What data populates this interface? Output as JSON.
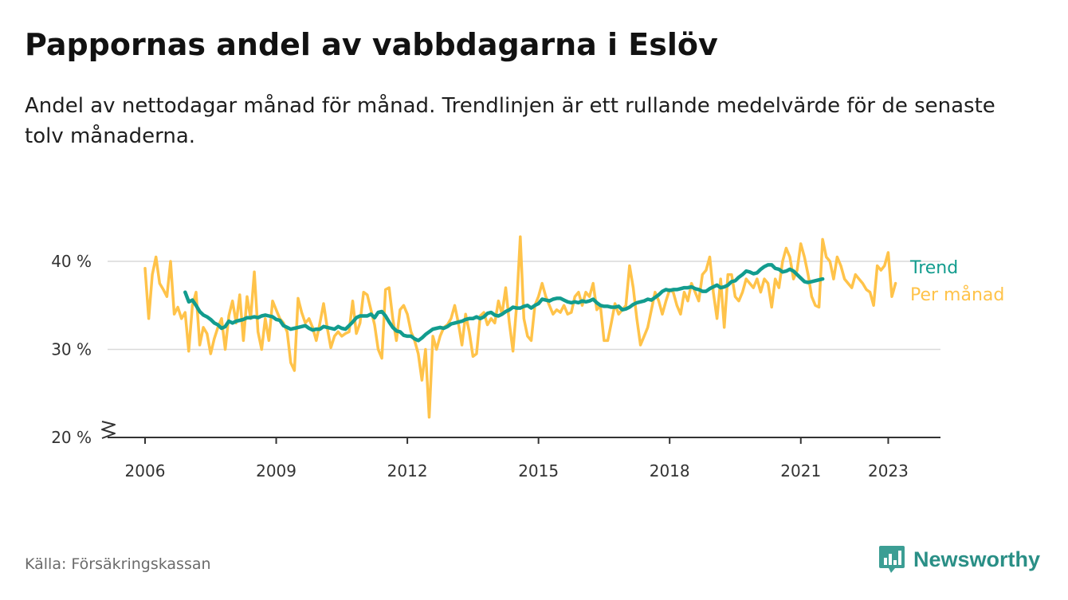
{
  "header": {
    "title": "Pappornas andel av vabbdagarna i Eslöv",
    "subtitle": "Andel av nettodagar månad för månad. Trendlinjen är ett rullande medelvärde för de senaste tolv månaderna."
  },
  "footer": {
    "source": "Källa: Försäkringskassan",
    "brand": "Newsworthy",
    "brand_icon": "bar-chart-speech-bubble-icon"
  },
  "colors": {
    "monthly": "#FFC34A",
    "trend": "#129C8E",
    "grid": "#d9d9d9",
    "axis": "#333333",
    "brand": "#2a8f86"
  },
  "chart_data": {
    "type": "line",
    "title": "Pappornas andel av vabbdagarna i Eslöv",
    "subtitle": "Andel av nettodagar månad för månad. Trendlinjen är ett rullande medelvärde för de senaste tolv månaderna.",
    "xlabel": "",
    "ylabel": "",
    "x_ticks": [
      {
        "value": 2006,
        "label": "2006"
      },
      {
        "value": 2009,
        "label": "2009"
      },
      {
        "value": 2012,
        "label": "2012"
      },
      {
        "value": 2015,
        "label": "2015"
      },
      {
        "value": 2018,
        "label": "2018"
      },
      {
        "value": 2021,
        "label": "2021"
      },
      {
        "value": 2023,
        "label": "2023"
      }
    ],
    "y_ticks": [
      {
        "value": 20,
        "label": "20 %"
      },
      {
        "value": 30,
        "label": "30 %"
      },
      {
        "value": 40,
        "label": "40 %"
      }
    ],
    "xlim": [
      2005.92,
      2023.25
    ],
    "ylim": [
      20,
      40
    ],
    "y_axis_break": true,
    "grid": "horizontal",
    "legend": "direct labels at line ends, right",
    "series": [
      {
        "name": "Trend",
        "color": "#129C8E",
        "x_start": 2006.917,
        "x_step": 0.08333,
        "values": [
          36.5,
          35.4,
          35.6,
          35.0,
          34.3,
          33.9,
          33.7,
          33.4,
          33.0,
          32.8,
          32.4,
          32.6,
          33.2,
          33.0,
          33.2,
          33.3,
          33.4,
          33.6,
          33.6,
          33.7,
          33.6,
          33.8,
          33.9,
          33.8,
          33.7,
          33.4,
          33.3,
          32.7,
          32.5,
          32.3,
          32.4,
          32.5,
          32.6,
          32.7,
          32.4,
          32.2,
          32.3,
          32.3,
          32.6,
          32.5,
          32.4,
          32.3,
          32.6,
          32.4,
          32.3,
          32.7,
          33.1,
          33.6,
          33.8,
          33.8,
          33.8,
          34.0,
          33.6,
          34.2,
          34.3,
          33.8,
          33.1,
          32.5,
          32.1,
          32.0,
          31.6,
          31.5,
          31.5,
          31.2,
          31.0,
          31.3,
          31.7,
          32.0,
          32.3,
          32.4,
          32.5,
          32.4,
          32.6,
          32.9,
          33.0,
          33.1,
          33.2,
          33.4,
          33.5,
          33.5,
          33.7,
          33.5,
          33.7,
          34.1,
          34.2,
          33.9,
          33.8,
          34.0,
          34.3,
          34.5,
          34.8,
          34.7,
          34.7,
          34.9,
          35.0,
          34.7,
          35.0,
          35.2,
          35.7,
          35.6,
          35.5,
          35.7,
          35.8,
          35.8,
          35.6,
          35.4,
          35.3,
          35.4,
          35.3,
          35.5,
          35.4,
          35.5,
          35.7,
          35.3,
          35.0,
          34.9,
          34.9,
          34.8,
          34.8,
          34.9,
          34.5,
          34.6,
          34.8,
          35.1,
          35.3,
          35.4,
          35.5,
          35.7,
          35.6,
          35.9,
          36.2,
          36.6,
          36.8,
          36.7,
          36.8,
          36.8,
          36.9,
          37.0,
          37.0,
          37.1,
          36.9,
          36.8,
          36.6,
          36.6,
          36.9,
          37.1,
          37.3,
          37.0,
          37.1,
          37.3,
          37.7,
          37.8,
          38.2,
          38.5,
          38.9,
          38.8,
          38.6,
          38.7,
          39.1,
          39.4,
          39.6,
          39.6,
          39.2,
          39.1,
          38.8,
          38.9,
          39.1,
          38.9,
          38.5,
          38.1,
          37.7,
          37.6,
          37.7,
          37.8,
          37.9,
          38.0
        ]
      },
      {
        "name": "Per månad",
        "color": "#FFC34A",
        "x_start": 2006.0,
        "x_step": 0.08333,
        "values": [
          39.2,
          33.5,
          38.5,
          40.5,
          37.5,
          36.8,
          36.0,
          40.0,
          34.0,
          34.8,
          33.5,
          34.2,
          29.8,
          35.0,
          36.5,
          30.5,
          32.5,
          31.8,
          29.5,
          31.2,
          32.5,
          33.5,
          30.0,
          33.8,
          35.5,
          33.0,
          36.2,
          31.0,
          36.0,
          33.5,
          38.8,
          32.0,
          30.0,
          33.5,
          31.0,
          35.5,
          34.5,
          33.5,
          33.0,
          32.0,
          28.5,
          27.6,
          35.8,
          34.2,
          33.0,
          33.5,
          32.5,
          31.0,
          33.0,
          35.2,
          32.5,
          30.2,
          31.5,
          32.0,
          31.5,
          31.8,
          32.0,
          35.5,
          31.8,
          33.0,
          36.5,
          36.2,
          34.5,
          32.8,
          30.0,
          29.0,
          36.8,
          37.0,
          33.5,
          31.0,
          34.5,
          35.0,
          34.0,
          32.0,
          31.0,
          29.5,
          26.5,
          30.0,
          22.3,
          31.5,
          30.0,
          31.5,
          32.5,
          32.8,
          33.5,
          35.0,
          33.0,
          30.5,
          34.0,
          32.0,
          29.2,
          29.5,
          33.8,
          34.2,
          32.8,
          33.5,
          33.0,
          35.5,
          34.0,
          37.0,
          33.0,
          29.8,
          35.0,
          42.8,
          33.5,
          31.5,
          31.0,
          35.0,
          36.0,
          37.5,
          36.0,
          35.0,
          34.0,
          34.5,
          34.2,
          35.0,
          34.0,
          34.2,
          36.0,
          36.5,
          35.0,
          36.5,
          36.0,
          37.5,
          34.5,
          35.0,
          31.0,
          31.0,
          33.0,
          35.2,
          34.0,
          34.5,
          35.0,
          39.5,
          37.0,
          33.5,
          30.5,
          31.5,
          32.5,
          34.5,
          36.5,
          35.5,
          34.0,
          35.5,
          36.8,
          36.5,
          35.0,
          34.0,
          36.5,
          35.5,
          37.5,
          36.5,
          35.5,
          38.5,
          39.0,
          40.5,
          36.5,
          33.5,
          38.0,
          32.5,
          38.5,
          38.5,
          36.0,
          35.5,
          36.5,
          38.0,
          37.5,
          37.0,
          38.0,
          36.5,
          38.0,
          37.5,
          34.8,
          38.0,
          37.0,
          40.0,
          41.5,
          40.5,
          38.0,
          39.0,
          42.0,
          40.5,
          38.5,
          36.0,
          35.0,
          34.8,
          42.5,
          40.5,
          40.0,
          38.0,
          40.5,
          39.5,
          38.0,
          37.5,
          37.0,
          38.5,
          38.0,
          37.5,
          36.8,
          36.5,
          35.0,
          39.5,
          39.0,
          39.5,
          41.0,
          36.0,
          37.5
        ]
      }
    ]
  }
}
